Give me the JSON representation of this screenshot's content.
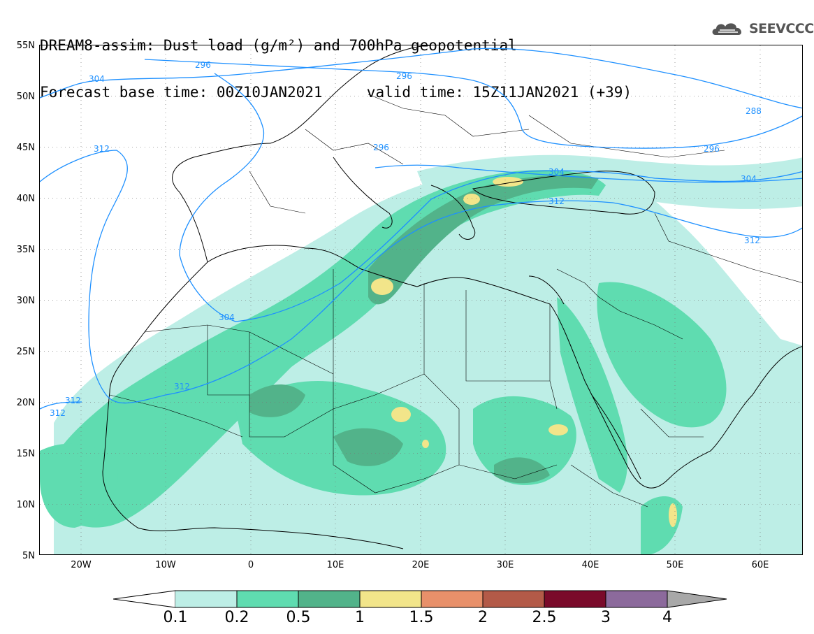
{
  "header": {
    "line1": "DREAM8-assim: Dust load (g/m²) and 700hPa geopotential",
    "line2_base": "Forecast base time: 00Z10JAN2021",
    "line2_valid": "valid time: 15Z11JAN2021 (+39)"
  },
  "logo": {
    "text": "SEEVCCC",
    "icon": "cloud-icon"
  },
  "map": {
    "lat_labels": [
      "55N",
      "50N",
      "45N",
      "40N",
      "35N",
      "30N",
      "25N",
      "20N",
      "15N",
      "10N",
      "5N"
    ],
    "lon_labels": [
      "20W",
      "10W",
      "0",
      "10E",
      "20E",
      "30E",
      "40E",
      "50E",
      "60E"
    ],
    "contour_labels": [
      "296",
      "304",
      "296",
      "288",
      "312",
      "296",
      "296",
      "304",
      "304",
      "312",
      "312",
      "304",
      "312",
      "312",
      "312"
    ],
    "contour_color": "#1e90ff"
  },
  "colorbar": {
    "labels": [
      "0.1",
      "0.2",
      "0.5",
      "1",
      "1.5",
      "2",
      "2.5",
      "3",
      "4"
    ],
    "colors": [
      "#bdeee6",
      "#5fdcb0",
      "#52b38a",
      "#f2e58a",
      "#e8906a",
      "#b35a48",
      "#7a0a2a",
      "#8c6a9c",
      "#a8a8a8"
    ]
  }
}
